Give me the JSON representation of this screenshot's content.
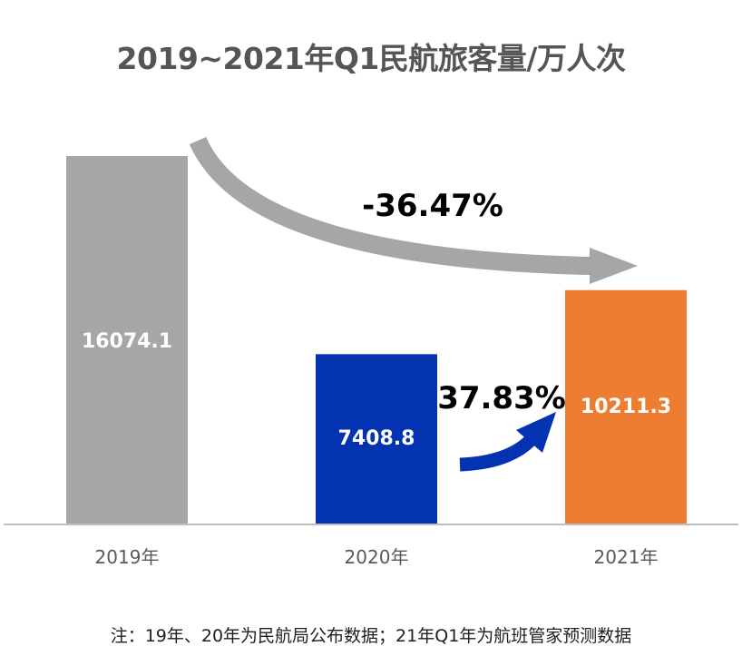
{
  "chart_data": {
    "type": "bar",
    "title": "2019~2021年Q1民航旅客量/万人次",
    "categories": [
      "2019年",
      "2020年",
      "2021年"
    ],
    "values": [
      16074.1,
      7408.8,
      10211.3
    ],
    "value_labels": [
      "16074.1",
      "7408.8",
      "10211.3"
    ],
    "colors": [
      "#a6a6a6",
      "#0433b2",
      "#ed7d31"
    ],
    "ylim": [
      0,
      16074.1
    ],
    "grid": false,
    "annotations": [
      {
        "text": "-36.47%",
        "from": "2019年",
        "to": "2021年",
        "arrow_color": "#a6a6a6"
      },
      {
        "text": "37.83%",
        "from": "2020年",
        "to": "2021年",
        "arrow_color": "#0433b2"
      }
    ],
    "note": "注：19年、20年为民航局公布数据；21年Q1年为航班管家预测数据"
  }
}
